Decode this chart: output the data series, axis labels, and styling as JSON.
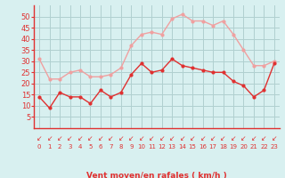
{
  "hours": [
    0,
    1,
    2,
    3,
    4,
    5,
    6,
    7,
    8,
    9,
    10,
    11,
    12,
    13,
    14,
    15,
    16,
    17,
    18,
    19,
    20,
    21,
    22,
    23
  ],
  "wind_avg": [
    14,
    9,
    16,
    14,
    14,
    11,
    17,
    14,
    16,
    24,
    29,
    25,
    26,
    31,
    28,
    27,
    26,
    25,
    25,
    21,
    19,
    14,
    17,
    29
  ],
  "wind_gust": [
    31,
    22,
    22,
    25,
    26,
    23,
    23,
    24,
    27,
    37,
    42,
    43,
    42,
    49,
    51,
    48,
    48,
    46,
    48,
    42,
    35,
    28,
    28,
    30
  ],
  "avg_color": "#e03030",
  "gust_color": "#f0a0a0",
  "bg_color": "#d8f0f0",
  "grid_color": "#b0d0d0",
  "xlabel": "Vent moyen/en rafales ( km/h )",
  "xlabel_color": "#e03030",
  "tick_color": "#e03030",
  "arrow_color": "#e03030",
  "ylim": [
    0,
    55
  ],
  "yticks": [
    5,
    10,
    15,
    20,
    25,
    30,
    35,
    40,
    45,
    50
  ]
}
